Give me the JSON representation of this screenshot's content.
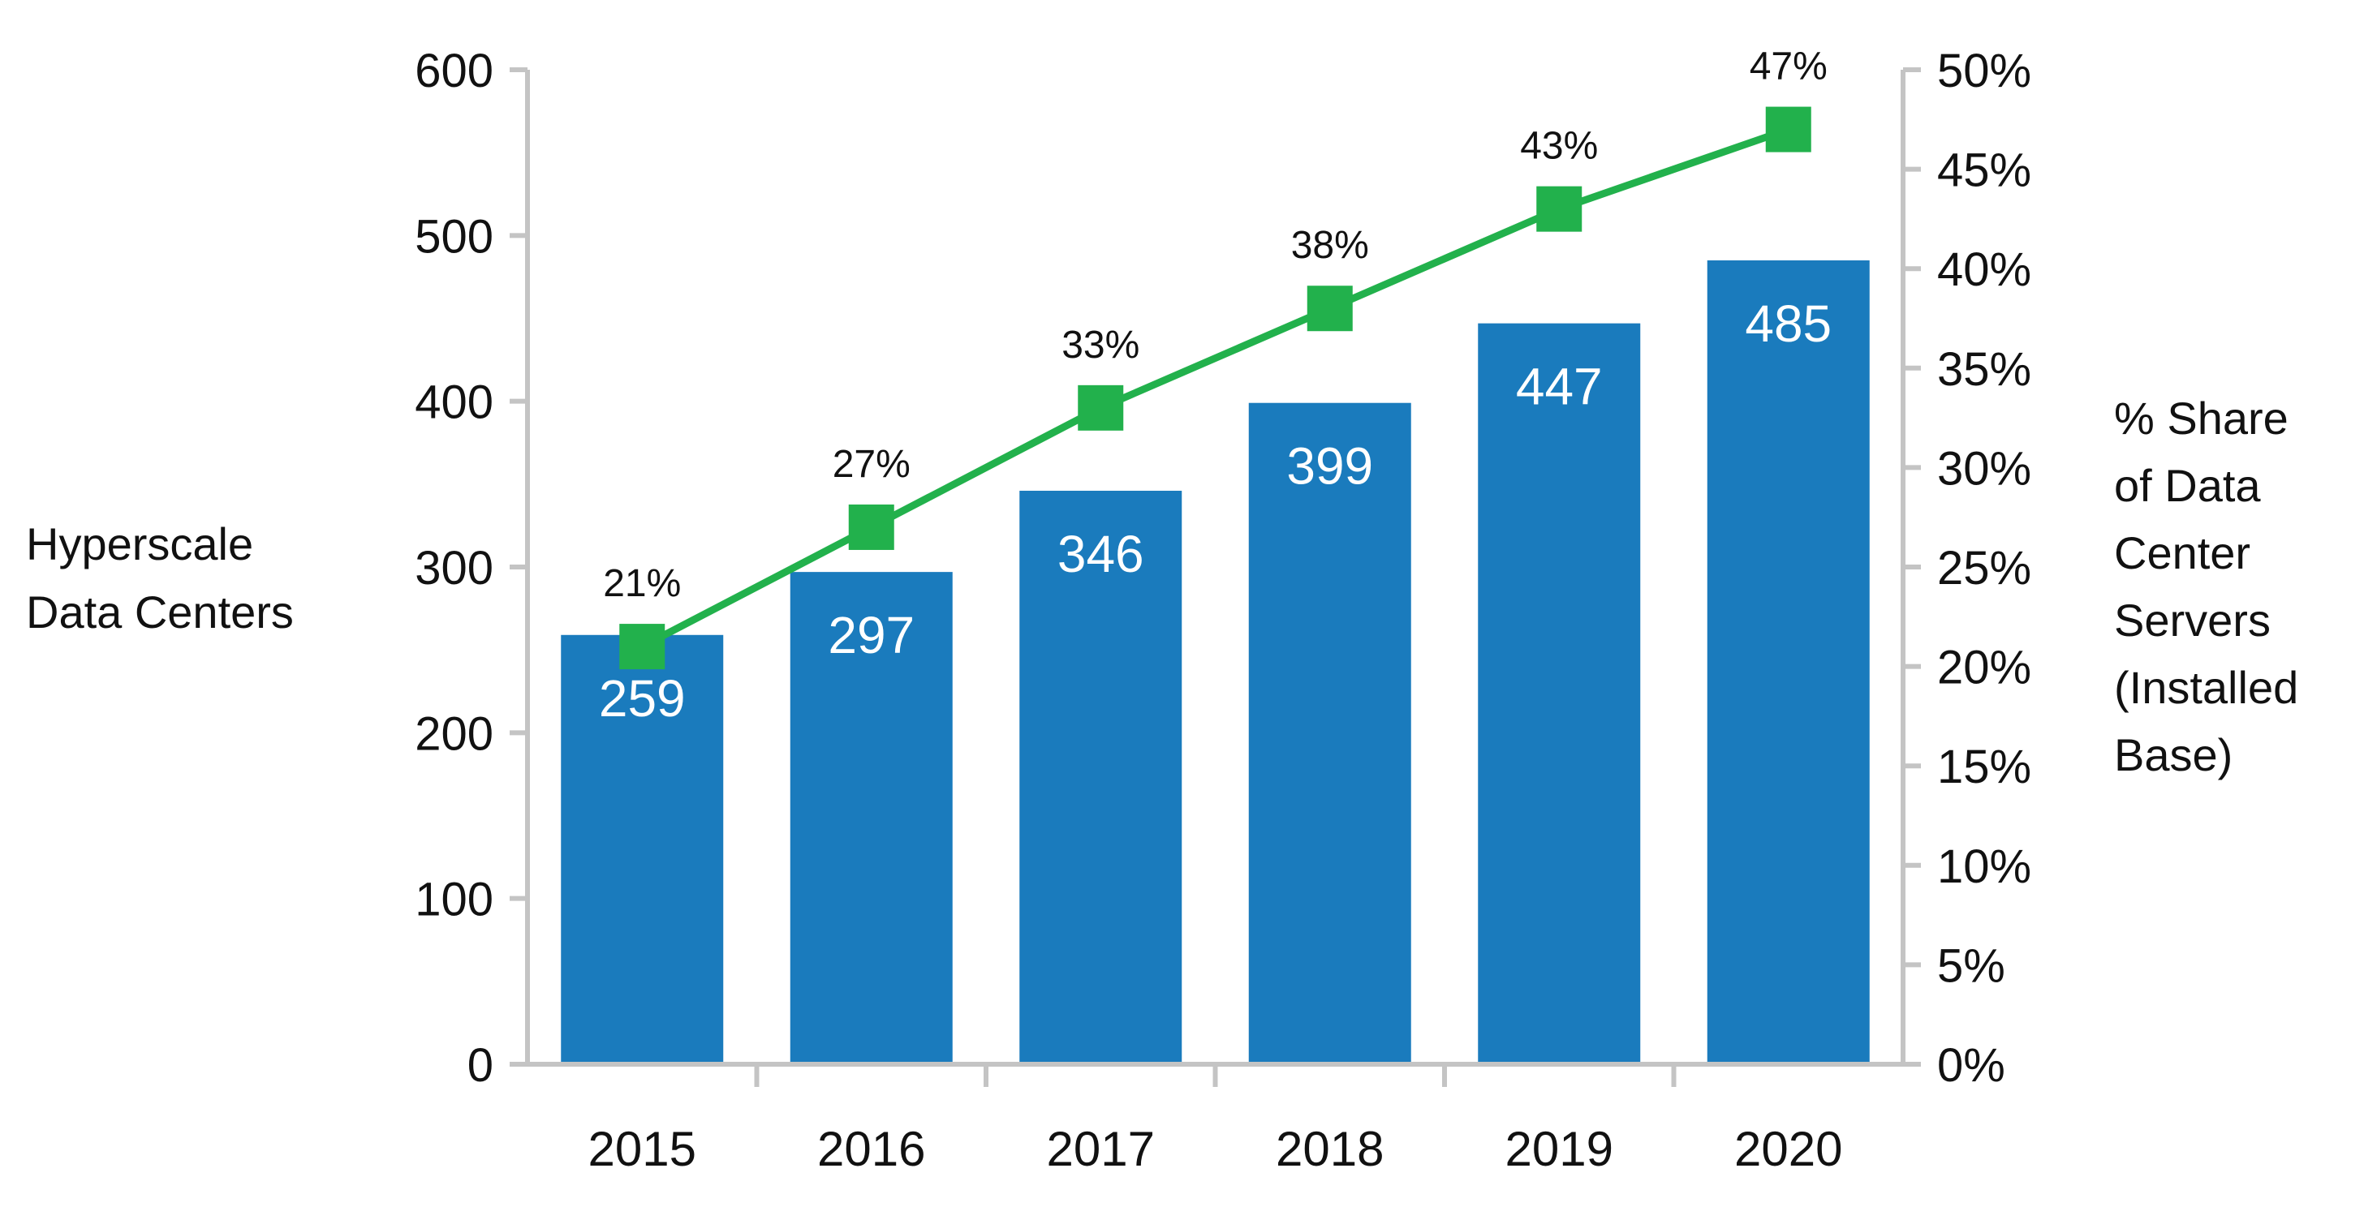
{
  "chart_data": {
    "type": "bar+line",
    "categories": [
      "2015",
      "2016",
      "2017",
      "2018",
      "2019",
      "2020"
    ],
    "bar_series": {
      "name": "Hyperscale Data Centers",
      "values": [
        259,
        297,
        346,
        399,
        447,
        485
      ],
      "labels": [
        "259",
        "297",
        "346",
        "399",
        "447",
        "485"
      ],
      "color": "#1a7bbd"
    },
    "line_series": {
      "name": "% Share of Data Center Servers (Installed Base)",
      "values": [
        21,
        27,
        33,
        38,
        43,
        47
      ],
      "labels": [
        "21%",
        "27%",
        "33%",
        "38%",
        "43%",
        "47%"
      ],
      "color": "#22b14c",
      "marker": "square"
    },
    "y_left": {
      "label_lines": [
        "Hyperscale",
        "Data Centers"
      ],
      "ylim": [
        0,
        600
      ],
      "ticks": [
        0,
        100,
        200,
        300,
        400,
        500,
        600
      ],
      "tick_labels": [
        "0",
        "100",
        "200",
        "300",
        "400",
        "500",
        "600"
      ]
    },
    "y_right": {
      "label_lines": [
        "% Share",
        "of Data",
        "Center",
        "Servers",
        "(Installed",
        "Base)"
      ],
      "ylim": [
        0,
        50
      ],
      "ticks": [
        0,
        5,
        10,
        15,
        20,
        25,
        30,
        35,
        40,
        45,
        50
      ],
      "tick_labels": [
        "0%",
        "5%",
        "10%",
        "15%",
        "20%",
        "25%",
        "30%",
        "35%",
        "40%",
        "45%",
        "50%"
      ]
    },
    "title": "",
    "grid": false,
    "axis_color": "#c4c4c4"
  }
}
